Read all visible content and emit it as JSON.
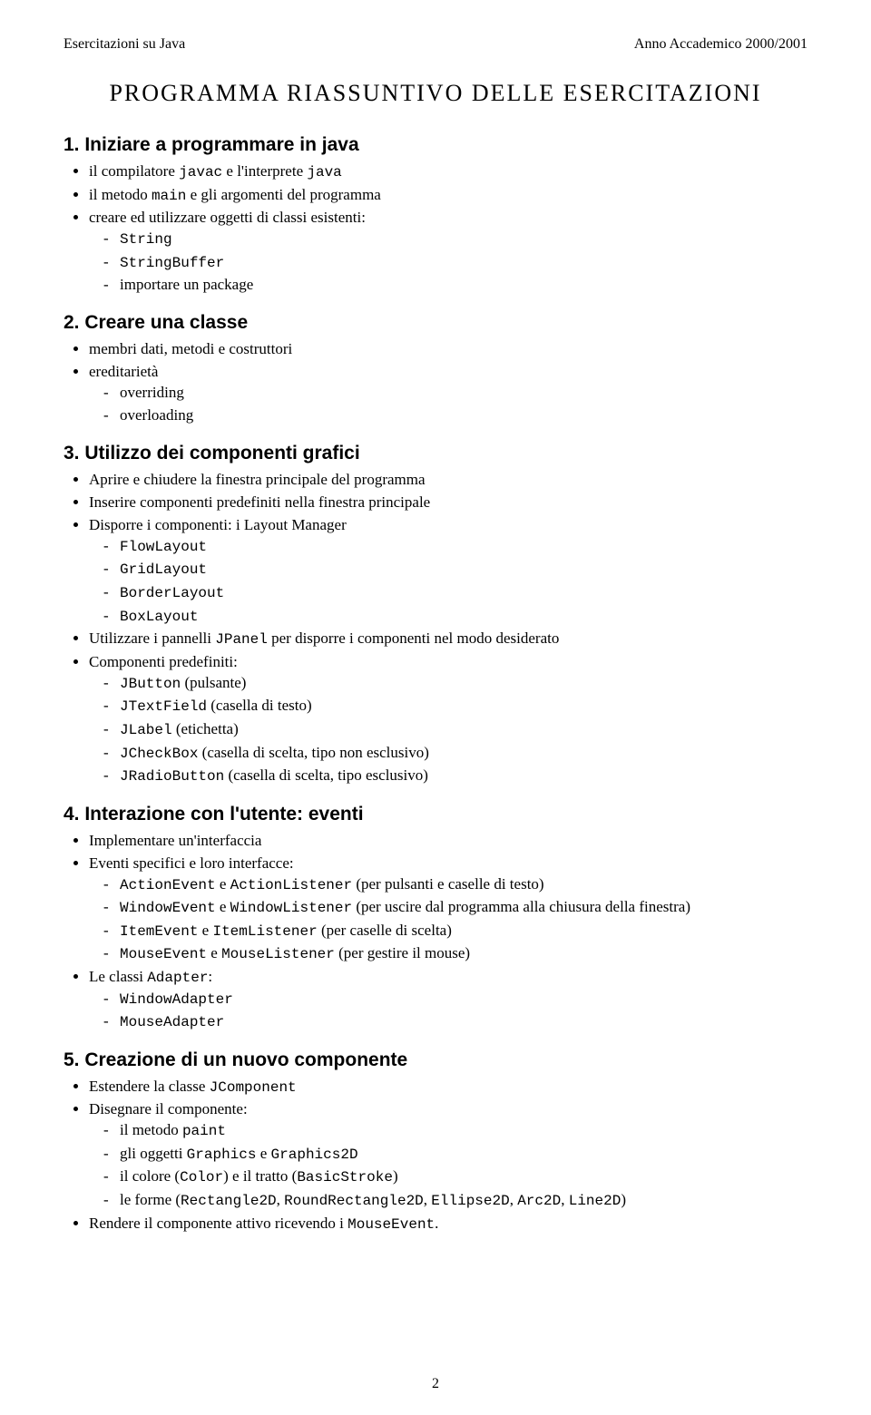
{
  "header": {
    "left": "Esercitazioni su Java",
    "right": "Anno Accademico 2000/2001"
  },
  "main_title": "PROGRAMMA RIASSUNTIVO DELLE ESERCITAZIONI",
  "sections": {
    "s1": {
      "heading": "1. Iniziare a programmare in java",
      "item1_pre": "il compilatore ",
      "item1_code1": "javac",
      "item1_mid": " e l'interprete ",
      "item1_code2": "java",
      "item2_pre": "il metodo ",
      "item2_code": "main",
      "item2_post": " e gli argomenti del programma",
      "item3": "creare ed utilizzare oggetti di classi esistenti:",
      "item3_sub1": "String",
      "item3_sub2": "StringBuffer",
      "item3_sub3": "importare un package"
    },
    "s2": {
      "heading": "2. Creare una classe",
      "item1": "membri dati, metodi e costruttori",
      "item2": "ereditarietà",
      "item2_sub1": "overriding",
      "item2_sub2": "overloading"
    },
    "s3": {
      "heading": "3. Utilizzo dei componenti grafici",
      "item1": "Aprire e chiudere la finestra principale del programma",
      "item2": "Inserire componenti predefiniti nella finestra principale",
      "item3": "Disporre i componenti: i Layout Manager",
      "item3_sub1": "FlowLayout",
      "item3_sub2": "GridLayout",
      "item3_sub3": "BorderLayout",
      "item3_sub4": "BoxLayout",
      "item4_pre": "Utilizzare i pannelli ",
      "item4_code": "JPanel",
      "item4_post": " per disporre i componenti nel modo desiderato",
      "item5": "Componenti predefiniti:",
      "item5_sub1_code": "JButton",
      "item5_sub1_post": " (pulsante)",
      "item5_sub2_code": "JTextField",
      "item5_sub2_post": " (casella di testo)",
      "item5_sub3_code": "JLabel",
      "item5_sub3_post": " (etichetta)",
      "item5_sub4_code": "JCheckBox",
      "item5_sub4_post": " (casella di scelta, tipo non esclusivo)",
      "item5_sub5_code": "JRadioButton",
      "item5_sub5_post": " (casella di scelta, tipo esclusivo)"
    },
    "s4": {
      "heading": "4. Interazione con l'utente: eventi",
      "item1": "Implementare un'interfaccia",
      "item2": "Eventi specifici e loro interfacce:",
      "item2_sub1_c1": "ActionEvent",
      "item2_sub1_m": " e ",
      "item2_sub1_c2": "ActionListener",
      "item2_sub1_p": " (per pulsanti e caselle di testo)",
      "item2_sub2_c1": "WindowEvent",
      "item2_sub2_m": " e ",
      "item2_sub2_c2": "WindowListener",
      "item2_sub2_p": " (per uscire dal programma alla chiusura della finestra)",
      "item2_sub3_c1": "ItemEvent",
      "item2_sub3_m": " e ",
      "item2_sub3_c2": "ItemListener",
      "item2_sub3_p": " (per caselle di scelta)",
      "item2_sub4_c1": "MouseEvent",
      "item2_sub4_m": " e ",
      "item2_sub4_c2": "MouseListener",
      "item2_sub4_p": " (per gestire il mouse)",
      "item3_pre": "Le classi ",
      "item3_code": "Adapter",
      "item3_post": ":",
      "item3_sub1": "WindowAdapter",
      "item3_sub2": "MouseAdapter"
    },
    "s5": {
      "heading": "5. Creazione di un nuovo componente",
      "item1_pre": "Estendere la classe ",
      "item1_code": "JComponent",
      "item2": "Disegnare il componente:",
      "item2_sub1_pre": "il metodo ",
      "item2_sub1_code": "paint",
      "item2_sub2_pre": "gli oggetti ",
      "item2_sub2_c1": "Graphics",
      "item2_sub2_m": " e ",
      "item2_sub2_c2": "Graphics2D",
      "item2_sub3_pre": "il colore (",
      "item2_sub3_c1": "Color",
      "item2_sub3_m": ") e il tratto (",
      "item2_sub3_c2": "BasicStroke",
      "item2_sub3_post": ")",
      "item2_sub4_pre": "le forme (",
      "item2_sub4_c1": "Rectangle2D",
      "item2_sub4_s1": ", ",
      "item2_sub4_c2": "RoundRectangle2D",
      "item2_sub4_s2": ", ",
      "item2_sub4_c3": "Ellipse2D",
      "item2_sub4_s3": ", ",
      "item2_sub4_c4": "Arc2D",
      "item2_sub4_s4": ", ",
      "item2_sub4_c5": "Line2D",
      "item2_sub4_post": ")",
      "item3_pre": "Rendere il componente attivo ricevendo i ",
      "item3_code": "MouseEvent",
      "item3_post": "."
    }
  },
  "page_number": "2"
}
